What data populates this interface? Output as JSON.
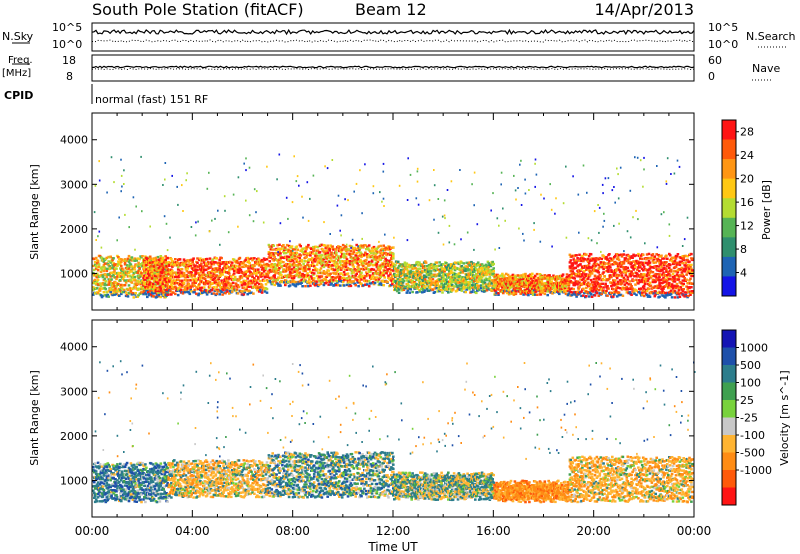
{
  "header": {
    "station": "South Pole Station (fitACF)",
    "beam": "Beam 12",
    "date": "14/Apr/2013"
  },
  "status_panel": {
    "nsky_label": "N.Sky",
    "nsky_ticks": [
      "10^5",
      "10^0"
    ],
    "nsearch_label": "N.Search",
    "freq_label": "Freq.",
    "freq_unit": "[MHz]",
    "freq_ticks": [
      "18",
      "8"
    ],
    "nave_ticks": [
      "60",
      "0"
    ],
    "nave_label": "Nave",
    "cpid_label": "CPID",
    "cpid_value": "normal (fast) 151 RF"
  },
  "colors": {
    "power_scale": [
      "#1414e6",
      "#1e64b4",
      "#2f8f6e",
      "#56b455",
      "#b4dc32",
      "#ffc814",
      "#ff9614",
      "#ff5a0a",
      "#ff1414"
    ],
    "velocity_scale": [
      "#1414b4",
      "#1e50aa",
      "#2c7d8c",
      "#3fa050",
      "#78d23c",
      "#c8c8c8",
      "#ffb432",
      "#ff8c14",
      "#ff5a0a",
      "#ff1414"
    ]
  },
  "chart_data": [
    {
      "type": "heatmap",
      "ylabel": "Slant Range [km]",
      "yticks": [
        1000,
        2000,
        3000,
        4000
      ],
      "ylim": [
        180,
        4600
      ],
      "xlabel": "Time UT",
      "xticks": [
        "00:00",
        "04:00",
        "08:00",
        "12:00",
        "16:00",
        "20:00",
        "00:00"
      ],
      "xlim_hours": [
        0,
        24
      ],
      "colorbar": {
        "label": "Power [dB]",
        "ticks": [
          4,
          8,
          12,
          16,
          20,
          24,
          28
        ],
        "range": [
          0,
          30
        ]
      },
      "scatter_bands": [
        {
          "start_hour": 0,
          "end_hour": 3,
          "range_km": [
            550,
            1450
          ],
          "value": 18
        },
        {
          "start_hour": 2,
          "end_hour": 7,
          "range_km": [
            600,
            1400
          ],
          "value": 24
        },
        {
          "start_hour": 7,
          "end_hour": 12,
          "range_km": [
            800,
            1700
          ],
          "value": 22
        },
        {
          "start_hour": 12,
          "end_hour": 16,
          "range_km": [
            650,
            1300
          ],
          "value": 16
        },
        {
          "start_hour": 16,
          "end_hour": 19,
          "range_km": [
            600,
            1000
          ],
          "value": 22
        },
        {
          "start_hour": 19,
          "end_hour": 24,
          "range_km": [
            550,
            1500
          ],
          "value": 27
        }
      ]
    },
    {
      "type": "heatmap",
      "ylabel": "Slant Range [km]",
      "yticks": [
        1000,
        2000,
        3000,
        4000
      ],
      "ylim": [
        180,
        4600
      ],
      "xlabel": "Time UT",
      "xticks": [
        "00:00",
        "04:00",
        "08:00",
        "12:00",
        "16:00",
        "20:00",
        "00:00"
      ],
      "xlim_hours": [
        0,
        24
      ],
      "colorbar": {
        "label": "Velocity [m s^-1]",
        "ticks": [
          1000,
          500,
          100,
          25,
          -25,
          -100,
          -500,
          -1000
        ]
      },
      "scatter_bands": [
        {
          "start_hour": 0,
          "end_hour": 3,
          "range_km": [
            600,
            1450
          ],
          "value": 300
        },
        {
          "start_hour": 3,
          "end_hour": 7,
          "range_km": [
            700,
            1500
          ],
          "value": -200
        },
        {
          "start_hour": 7,
          "end_hour": 12,
          "range_km": [
            700,
            1700
          ],
          "value": 150
        },
        {
          "start_hour": 12,
          "end_hour": 16,
          "range_km": [
            650,
            1200
          ],
          "value": 50
        },
        {
          "start_hour": 16,
          "end_hour": 19,
          "range_km": [
            600,
            1000
          ],
          "value": -700
        },
        {
          "start_hour": 19,
          "end_hour": 24,
          "range_km": [
            600,
            1600
          ],
          "value": -300
        }
      ]
    }
  ]
}
